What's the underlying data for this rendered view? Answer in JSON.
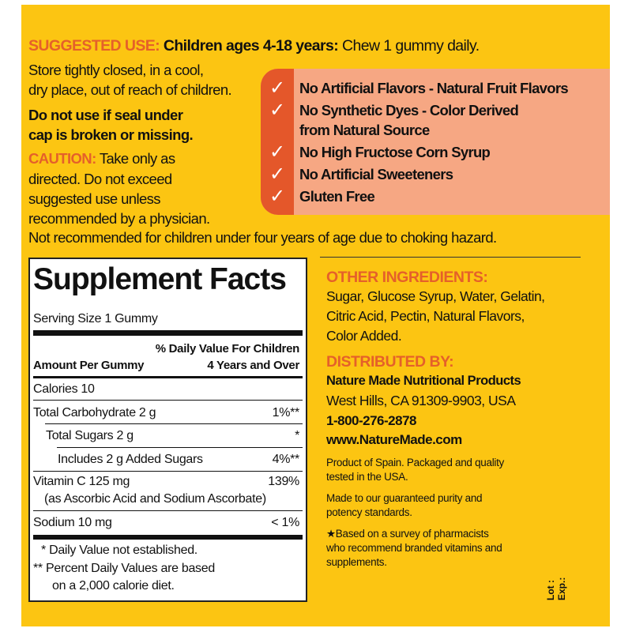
{
  "colors": {
    "background": "#fcc512",
    "accent_orange": "#e5602a",
    "claims_bg": "#f6a783",
    "claims_strip": "#e4572a"
  },
  "usage": {
    "suggested_label": "SUGGESTED USE:",
    "suggested_bold": "Children ages 4-18 years:",
    "suggested_text": "Chew 1 gummy daily.",
    "store": [
      "Store tightly closed, in a cool,",
      "dry place, out of reach of children."
    ],
    "seal": [
      "Do not use if seal under",
      "cap is broken or missing."
    ],
    "caution_label": "CAUTION:",
    "caution": [
      "Take only as",
      "directed. Do not exceed",
      "suggested use unless",
      "recommended by a physician."
    ],
    "choking": "Not recommended for children under four years of age due to choking hazard."
  },
  "claims": {
    "icon": "checkmark-icon",
    "check": "✓",
    "items": [
      "No Artificial Flavors - Natural Fruit Flavors",
      "No Synthetic Dyes - Color Derived",
      "from Natural Source",
      "No High Fructose Corn Syrup",
      "No Artificial Sweeteners",
      "Gluten Free"
    ]
  },
  "facts": {
    "title": "Supplement Facts",
    "serving": "Serving Size 1 Gummy",
    "dv_header": [
      "% Daily Value For Children",
      "4 Years and Over"
    ],
    "amount_header": "Amount Per Gummy",
    "rows": [
      {
        "label": "Calories  10",
        "dv": ""
      },
      {
        "label": "Total Carbohydrate  2 g",
        "dv": "1%**"
      },
      {
        "label": "Total Sugars  2 g",
        "dv": "*"
      },
      {
        "label": "Includes  2 g Added Sugars",
        "dv": "4%**"
      },
      {
        "label": "Vitamin C  125 mg",
        "dv": "139%",
        "sub": "(as Ascorbic Acid and Sodium Ascorbate)"
      },
      {
        "label": "Sodium  10 mg",
        "dv": "< 1%"
      }
    ],
    "footnotes": [
      "*  Daily Value not established.",
      "**  Percent Daily Values are based",
      "on a 2,000 calorie diet."
    ]
  },
  "right": {
    "ingredients_label": "OTHER INGREDIENTS:",
    "ingredients": [
      "Sugar, Glucose Syrup, Water, Gelatin,",
      "Citric Acid, Pectin, Natural Flavors,",
      "Color Added."
    ],
    "distributed_label": "DISTRIBUTED BY:",
    "company": "Nature Made Nutritional Products",
    "address": "West Hills, CA 91309-9903, USA",
    "phone": "1-800-276-2878",
    "website": "www.NatureMade.com",
    "origin": [
      "Product of Spain. Packaged and quality",
      "tested in the USA."
    ],
    "purity": [
      "Made to our guaranteed purity and",
      "potency standards."
    ],
    "survey": [
      "★Based on a survey of pharmacists",
      "who recommend branded vitamins and",
      "supplements."
    ],
    "lot": "Lot :",
    "exp": "Exp.:"
  }
}
